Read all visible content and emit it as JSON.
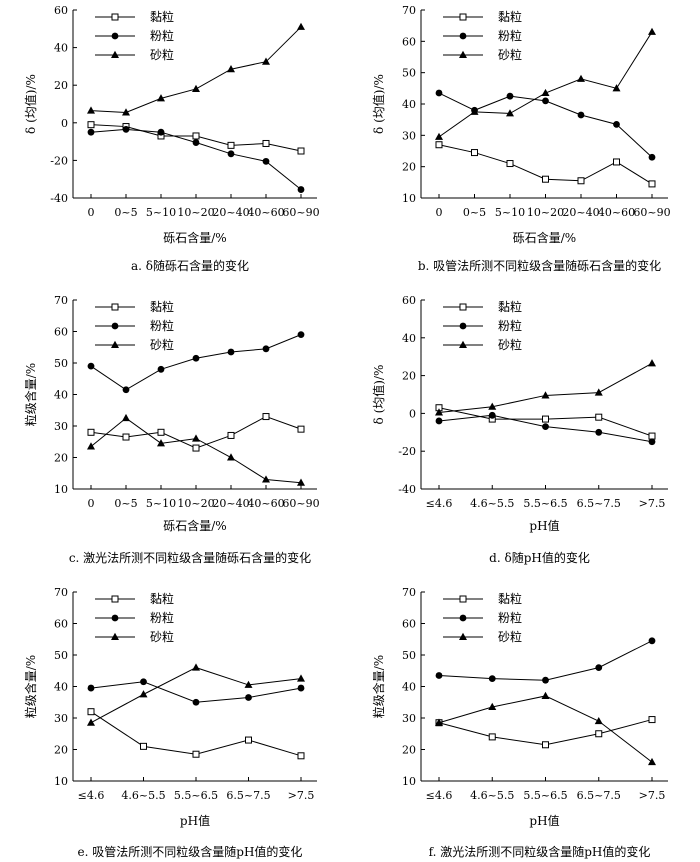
{
  "chart_data": [
    {
      "type": "line",
      "caption": "a.   δ随砾石含量的变化",
      "xlabel": "砾石含量/%",
      "ylabel": "δ (均值)/%",
      "categories": [
        "0",
        "0~5",
        "5~10",
        "10~20",
        "20~40",
        "40~60",
        "60~90"
      ],
      "ylim": [
        -40,
        60
      ],
      "yticks": [
        -40,
        -20,
        0,
        20,
        40,
        60
      ],
      "series": [
        {
          "name": "黏粒",
          "marker": "square-open",
          "values": [
            -1,
            -2,
            -7,
            -7,
            -12,
            -11,
            -15
          ]
        },
        {
          "name": "粉粒",
          "marker": "circle-filled",
          "values": [
            -5,
            -3.5,
            -5,
            -10.5,
            -16.5,
            -20.5,
            -35.5
          ]
        },
        {
          "name": "砂粒",
          "marker": "triangle-filled",
          "values": [
            6.5,
            5.5,
            13,
            18,
            28.5,
            32.5,
            51
          ]
        }
      ]
    },
    {
      "type": "line",
      "caption": "b.   吸管法所测不同粒级含量随砾石含量的变化",
      "xlabel": "砾石含量/%",
      "ylabel": "δ (均值)/%",
      "categories": [
        "0",
        "0~5",
        "5~10",
        "10~20",
        "20~40",
        "40~60",
        "60~90"
      ],
      "ylim": [
        10,
        70
      ],
      "yticks": [
        10,
        20,
        30,
        40,
        50,
        60,
        70
      ],
      "series": [
        {
          "name": "黏粒",
          "marker": "square-open",
          "values": [
            27,
            24.5,
            21,
            16,
            15.5,
            21.5,
            14.5
          ]
        },
        {
          "name": "粉粒",
          "marker": "circle-filled",
          "values": [
            43.5,
            38,
            42.5,
            41,
            36.5,
            33.5,
            23
          ]
        },
        {
          "name": "砂粒",
          "marker": "triangle-filled",
          "values": [
            29.5,
            37.5,
            37,
            43.5,
            48,
            45,
            63
          ]
        }
      ]
    },
    {
      "type": "line",
      "caption": "c.   激光法所测不同粒级含量随砾石含量的变化",
      "xlabel": "砾石含量/%",
      "ylabel": "粒级含量/%",
      "categories": [
        "0",
        "0~5",
        "5~10",
        "10~20",
        "20~40",
        "40~60",
        "60~90"
      ],
      "ylim": [
        10,
        70
      ],
      "yticks": [
        10,
        20,
        30,
        40,
        50,
        60,
        70
      ],
      "series": [
        {
          "name": "黏粒",
          "marker": "square-open",
          "values": [
            28,
            26.5,
            28,
            23,
            27,
            33,
            29
          ]
        },
        {
          "name": "粉粒",
          "marker": "circle-filled",
          "values": [
            49,
            41.5,
            48,
            51.5,
            53.5,
            54.5,
            59
          ]
        },
        {
          "name": "砂粒",
          "marker": "triangle-filled",
          "values": [
            23.5,
            32.5,
            24.5,
            26,
            20,
            13,
            12
          ]
        }
      ]
    },
    {
      "type": "line",
      "caption": "d.   δ随pH值的变化",
      "xlabel": "pH值",
      "ylabel": "δ (均值)/%",
      "categories": [
        "≤4.6",
        "4.6~5.5",
        "5.5~6.5",
        "6.5~7.5",
        ">7.5"
      ],
      "ylim": [
        -40,
        60
      ],
      "yticks": [
        -40,
        -20,
        0,
        20,
        40,
        60
      ],
      "series": [
        {
          "name": "黏粒",
          "marker": "square-open",
          "values": [
            3,
            -3,
            -3,
            -2,
            -12
          ]
        },
        {
          "name": "粉粒",
          "marker": "circle-filled",
          "values": [
            -4,
            -1,
            -7,
            -10,
            -15
          ]
        },
        {
          "name": "砂粒",
          "marker": "triangle-filled",
          "values": [
            0.5,
            3.5,
            9.5,
            11,
            26.5
          ]
        }
      ]
    },
    {
      "type": "line",
      "caption": "e.   吸管法所测不同粒级含量随pH值的变化",
      "xlabel": "pH值",
      "ylabel": "粒级含量/%",
      "categories": [
        "≤4.6",
        "4.6~5.5",
        "5.5~6.5",
        "6.5~7.5",
        ">7.5"
      ],
      "ylim": [
        10,
        70
      ],
      "yticks": [
        10,
        20,
        30,
        40,
        50,
        60,
        70
      ],
      "series": [
        {
          "name": "黏粒",
          "marker": "square-open",
          "values": [
            32,
            21,
            18.5,
            23,
            18
          ]
        },
        {
          "name": "粉粒",
          "marker": "circle-filled",
          "values": [
            39.5,
            41.5,
            35,
            36.5,
            39.5
          ]
        },
        {
          "name": "砂粒",
          "marker": "triangle-filled",
          "values": [
            28.5,
            37.5,
            46,
            40.5,
            42.5
          ]
        }
      ]
    },
    {
      "type": "line",
      "caption": "f.   激光法所测不同粒级含量随pH值的变化",
      "xlabel": "pH值",
      "ylabel": "粒级含量/%",
      "categories": [
        "≤4.6",
        "4.6~5.5",
        "5.5~6.5",
        "6.5~7.5",
        ">7.5"
      ],
      "ylim": [
        10,
        70
      ],
      "yticks": [
        10,
        20,
        30,
        40,
        50,
        60,
        70
      ],
      "series": [
        {
          "name": "黏粒",
          "marker": "square-open",
          "values": [
            28.5,
            24,
            21.5,
            25,
            29.5
          ]
        },
        {
          "name": "粉粒",
          "marker": "circle-filled",
          "values": [
            43.5,
            42.5,
            42,
            46,
            54.5
          ]
        },
        {
          "name": "砂粒",
          "marker": "triangle-filled",
          "values": [
            28.5,
            33.5,
            37,
            29,
            16
          ]
        }
      ]
    }
  ]
}
